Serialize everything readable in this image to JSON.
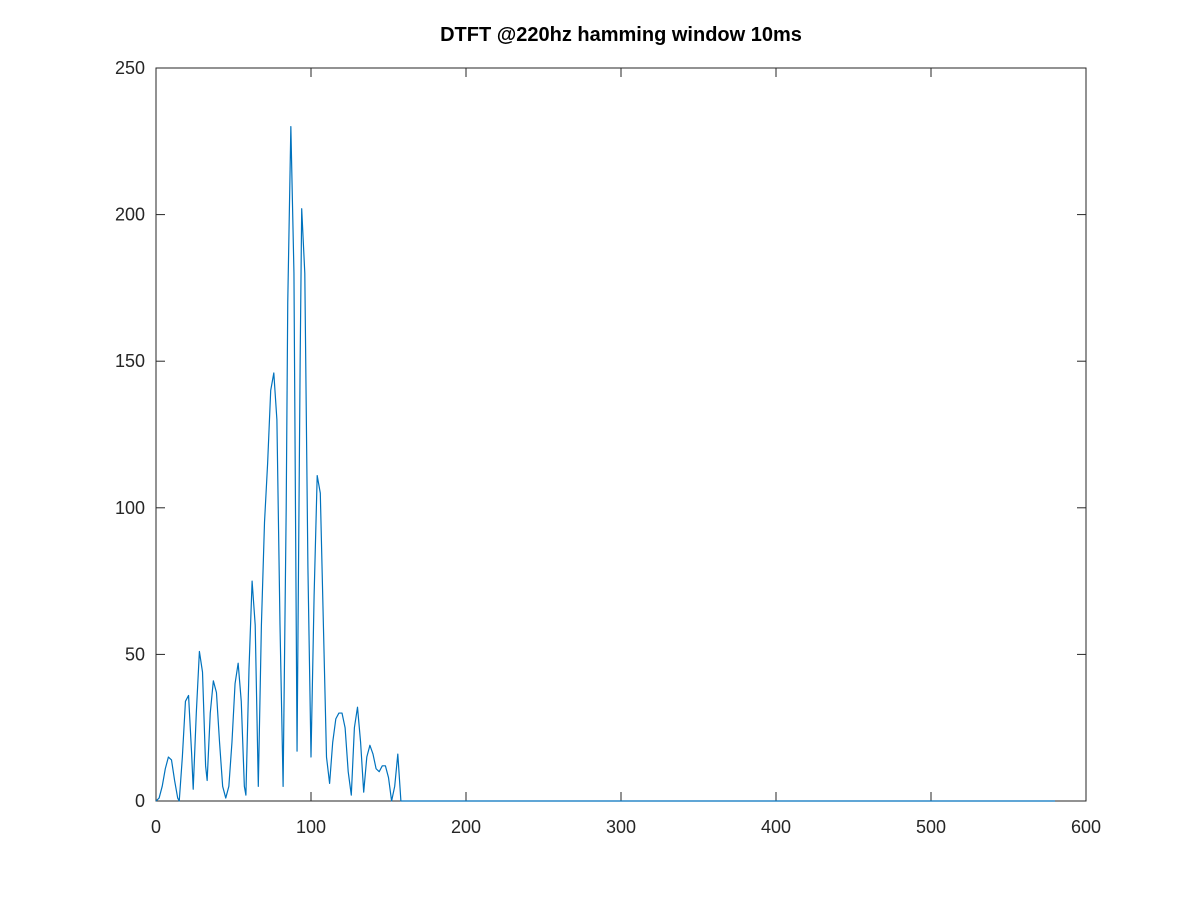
{
  "chart_data": {
    "type": "line",
    "title": "DTFT @220hz hamming window 10ms",
    "xlabel": "",
    "ylabel": "",
    "xlim": [
      0,
      600
    ],
    "ylim": [
      0,
      250
    ],
    "xticks": [
      0,
      100,
      200,
      300,
      400,
      500,
      600
    ],
    "yticks": [
      0,
      50,
      100,
      150,
      200,
      250
    ],
    "xtick_labels": [
      "0",
      "100",
      "200",
      "300",
      "400",
      "500",
      "600"
    ],
    "ytick_labels": [
      "0",
      "50",
      "100",
      "150",
      "200",
      "250"
    ],
    "grid": false,
    "legend": "none",
    "series": [
      {
        "color": "#0072bd",
        "x": [
          0,
          2,
          4,
          6,
          8,
          10,
          12,
          14,
          15,
          17,
          19,
          21,
          23,
          24,
          26,
          28,
          30,
          32,
          33,
          35,
          37,
          39,
          41,
          43,
          45,
          47,
          49,
          51,
          53,
          55,
          57,
          58,
          60,
          62,
          64,
          66,
          68,
          70,
          72,
          74,
          76,
          78,
          80,
          82,
          84,
          85,
          87,
          89,
          91,
          93,
          94,
          96,
          98,
          100,
          102,
          104,
          106,
          108,
          110,
          112,
          114,
          116,
          118,
          120,
          122,
          124,
          126,
          128,
          130,
          132,
          134,
          136,
          138,
          140,
          142,
          144,
          146,
          148,
          150,
          152,
          154,
          156,
          158,
          160,
          161,
          162,
          163,
          165,
          170,
          200,
          300,
          400,
          500,
          580
        ],
        "values": [
          0,
          1,
          5,
          11,
          15,
          14,
          7,
          1,
          0,
          15,
          34,
          36,
          16,
          4,
          30,
          51,
          44,
          12,
          7,
          30,
          41,
          37,
          20,
          5,
          1,
          5,
          20,
          40,
          47,
          34,
          5,
          2,
          45,
          75,
          60,
          5,
          60,
          95,
          115,
          140,
          146,
          130,
          60,
          5,
          100,
          170,
          230,
          180,
          17,
          150,
          202,
          180,
          80,
          15,
          70,
          111,
          105,
          60,
          15,
          6,
          20,
          28,
          30,
          30,
          25,
          10,
          2,
          25,
          32,
          20,
          3,
          15,
          19,
          16,
          11,
          10,
          12,
          12,
          8,
          0,
          5,
          16,
          0,
          0,
          0,
          0,
          0,
          0,
          0,
          0,
          0,
          0,
          0,
          0
        ]
      }
    ]
  }
}
